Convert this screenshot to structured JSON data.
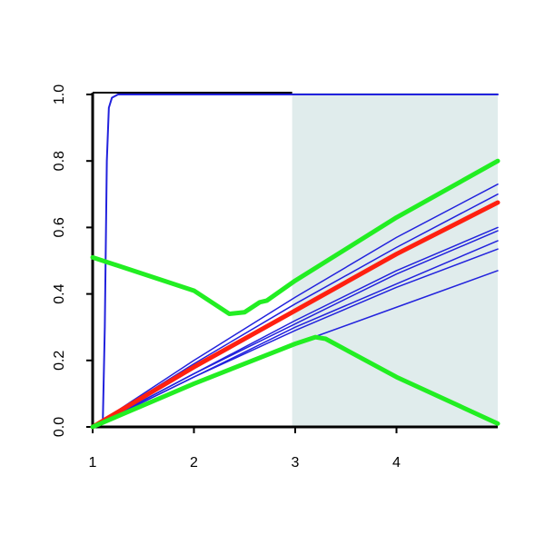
{
  "chart_data": {
    "type": "line",
    "xlim": [
      1,
      5
    ],
    "ylim": [
      0,
      1
    ],
    "xticks": [
      1,
      2,
      3,
      4
    ],
    "yticks": [
      {
        "value": 0,
        "label": "0.0"
      },
      0.2,
      0.4,
      0.6,
      0.8,
      {
        "value": 1,
        "label": "1.0"
      }
    ],
    "shaded_region": {
      "xlim": [
        2.97,
        5
      ],
      "color": "#e0ecec"
    },
    "series": [
      {
        "color": "#2222dd",
        "line_width": 2,
        "x": [
          1,
          1.1,
          1.12,
          1.14,
          1.16,
          1.19,
          1.25,
          5
        ],
        "values": [
          0,
          0.01,
          0.3,
          0.8,
          0.96,
          0.99,
          1,
          1
        ]
      },
      {
        "color": "#2222dd",
        "line_width": 1.5,
        "x": [
          1,
          2,
          3,
          4,
          5
        ],
        "values": [
          0,
          0.2,
          0.39,
          0.57,
          0.73
        ]
      },
      {
        "color": "#2222dd",
        "line_width": 1.5,
        "x": [
          1,
          2,
          3,
          4,
          5
        ],
        "values": [
          0,
          0.19,
          0.37,
          0.54,
          0.7
        ]
      },
      {
        "color": "#2222dd",
        "line_width": 1.5,
        "x": [
          1,
          2,
          3,
          4,
          5
        ],
        "values": [
          0,
          0.16,
          0.32,
          0.47,
          0.6
        ]
      },
      {
        "color": "#2222dd",
        "line_width": 1.5,
        "x": [
          1,
          2,
          3,
          4,
          5
        ],
        "values": [
          0,
          0.16,
          0.31,
          0.46,
          0.59
        ]
      },
      {
        "color": "#2222dd",
        "line_width": 1.5,
        "x": [
          1,
          2,
          3,
          4,
          5
        ],
        "values": [
          0,
          0.15,
          0.3,
          0.43,
          0.56
        ]
      },
      {
        "color": "#2222dd",
        "line_width": 1.5,
        "x": [
          1,
          2,
          3,
          4,
          5
        ],
        "values": [
          0,
          0.15,
          0.29,
          0.42,
          0.535
        ]
      },
      {
        "color": "#2222dd",
        "line_width": 1.5,
        "x": [
          1,
          2,
          3,
          4,
          5
        ],
        "values": [
          0,
          0.13,
          0.25,
          0.36,
          0.47
        ]
      },
      {
        "color": "#ff2010",
        "line_width": 5,
        "x": [
          1,
          2,
          3,
          4,
          5
        ],
        "values": [
          0,
          0.18,
          0.35,
          0.52,
          0.675
        ]
      },
      {
        "color": "#22ee22",
        "line_width": 5,
        "x": [
          1,
          2,
          2.35,
          2.5,
          2.65,
          2.72,
          3,
          4,
          5
        ],
        "values": [
          0.51,
          0.41,
          0.34,
          0.345,
          0.375,
          0.38,
          0.44,
          0.63,
          0.8
        ]
      },
      {
        "color": "#22ee22",
        "line_width": 5,
        "x": [
          1,
          2,
          3,
          3.2,
          3.3,
          4,
          5
        ],
        "values": [
          0,
          0.13,
          0.25,
          0.27,
          0.265,
          0.15,
          0.01
        ]
      }
    ]
  }
}
